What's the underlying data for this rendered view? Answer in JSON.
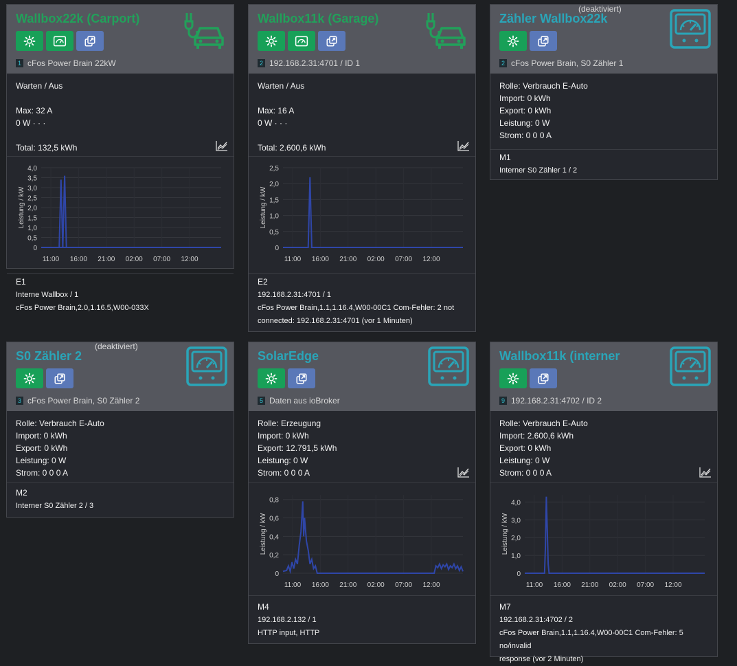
{
  "colors": {
    "green": "#18a058",
    "blue": "#5a78b8",
    "teal": "#2aa5b8",
    "line": "#2f46a8"
  },
  "cards": {
    "c1": {
      "title": "Wallbox22k (Carport)",
      "idx": "1",
      "sub": "cFos Power Brain 22kW",
      "status": "Warten / Aus",
      "max": "Max: 32 A",
      "power": "0 W · · ·",
      "total": "Total: 132,5 kWh",
      "foot_id": "E1",
      "foot1": "Interne Wallbox / 1",
      "foot2": "cFos Power Brain,2.0,1.16.5,W00-033X",
      "chart": {
        "type": "line",
        "ylabel": "Leistung / kW",
        "yticks": [
          "4,0",
          "3,5",
          "3,0",
          "2,5",
          "2,0",
          "1,5",
          "1,0",
          "0,5",
          "0"
        ],
        "xticks": [
          "11:00",
          "16:00",
          "21:00",
          "02:00",
          "07:00",
          "12:00"
        ],
        "ylim": [
          0,
          4.0
        ],
        "series": [
          {
            "points": [
              [
                0,
                0
              ],
              [
                10,
                0
              ],
              [
                11,
                3.4
              ],
              [
                12,
                0
              ],
              [
                90,
                0
              ],
              [
                100,
                0
              ]
            ]
          },
          {
            "points": [
              [
                0,
                0
              ],
              [
                12,
                0
              ],
              [
                13,
                3.6
              ],
              [
                14,
                0
              ],
              [
                100,
                0
              ]
            ]
          }
        ]
      }
    },
    "c2": {
      "title": "Wallbox11k (Garage)",
      "idx": "2",
      "sub": "192.168.2.31:4701 / ID 1",
      "status": "Warten / Aus",
      "max": "Max: 16 A",
      "power": "0 W · · ·",
      "total": "Total: 2.600,6 kWh",
      "foot_id": "E2",
      "foot1": "192.168.2.31:4701 / 1",
      "foot2": "cFos Power Brain,1.1,1.16.4,W00-00C1 Com-Fehler: 2 not",
      "foot3": "connected: 192.168.2.31:4701 (vor 1 Minuten)",
      "chart": {
        "type": "line",
        "ylabel": "Leistung / kW",
        "yticks": [
          "2,5",
          "2,0",
          "1,5",
          "1,0",
          "0,5",
          "0"
        ],
        "xticks": [
          "11:00",
          "16:00",
          "21:00",
          "02:00",
          "07:00",
          "12:00"
        ],
        "ylim": [
          0,
          2.5
        ],
        "series": [
          {
            "points": [
              [
                0,
                0
              ],
              [
                14,
                0
              ],
              [
                15,
                2.2
              ],
              [
                16,
                0
              ],
              [
                100,
                0
              ]
            ]
          }
        ]
      }
    },
    "c3": {
      "title": "Zähler Wallbox22k",
      "deact": "(deaktiviert)",
      "idx": "2",
      "sub": "cFos Power Brain, S0 Zähler 1",
      "role": "Rolle: Verbrauch E-Auto",
      "imp": "Import: 0 kWh",
      "exp": "Export: 0 kWh",
      "pow": "Leistung: 0 W",
      "cur": "Strom: 0 0 0 A",
      "foot_id": "M1",
      "foot1": "Interner S0 Zähler 1 / 2"
    },
    "c4": {
      "title": "S0 Zähler 2",
      "deact": "(deaktiviert)",
      "idx": "3",
      "sub": "cFos Power Brain, S0 Zähler 2",
      "role": "Rolle: Verbrauch E-Auto",
      "imp": "Import: 0 kWh",
      "exp": "Export: 0 kWh",
      "pow": "Leistung: 0 W",
      "cur": "Strom: 0 0 0 A",
      "foot_id": "M2",
      "foot1": "Interner S0 Zähler 2 / 3"
    },
    "c5": {
      "title": "SolarEdge",
      "idx": "5",
      "sub": "Daten aus ioBroker",
      "role": "Rolle: Erzeugung",
      "imp": "Import: 0 kWh",
      "exp": "Export: 12.791,5 kWh",
      "pow": "Leistung: 0 W",
      "cur": "Strom: 0 0 0 A",
      "foot_id": "M4",
      "foot1": "192.168.2.132 / 1",
      "foot2": "HTTP input, HTTP",
      "chart": {
        "type": "line",
        "ylabel": "Leistung / kW",
        "yticks": [
          "0,8",
          "0,6",
          "0,4",
          "0,2",
          "0"
        ],
        "xticks": [
          "11:00",
          "16:00",
          "21:00",
          "02:00",
          "07:00",
          "12:00"
        ],
        "ylim": [
          0,
          0.85
        ],
        "series": [
          {
            "points": [
              [
                0,
                0.02
              ],
              [
                2,
                0.03
              ],
              [
                3,
                0.08
              ],
              [
                4,
                0.02
              ],
              [
                5,
                0.12
              ],
              [
                6,
                0.05
              ],
              [
                7,
                0.15
              ],
              [
                8,
                0.1
              ],
              [
                9,
                0.3
              ],
              [
                10,
                0.45
              ],
              [
                11,
                0.78
              ],
              [
                11.5,
                0.4
              ],
              [
                12,
                0.6
              ],
              [
                13,
                0.35
              ],
              [
                14,
                0.25
              ],
              [
                15,
                0.1
              ],
              [
                16,
                0.15
              ],
              [
                17,
                0.05
              ],
              [
                18,
                0.08
              ],
              [
                19,
                0
              ],
              [
                84,
                0
              ],
              [
                85,
                0.08
              ],
              [
                86,
                0.06
              ],
              [
                87,
                0.1
              ],
              [
                88,
                0.05
              ],
              [
                89,
                0.09
              ],
              [
                90,
                0.07
              ],
              [
                91,
                0.1
              ],
              [
                92,
                0.04
              ],
              [
                93,
                0.08
              ],
              [
                94,
                0.06
              ],
              [
                95,
                0.1
              ],
              [
                96,
                0.05
              ],
              [
                97,
                0.08
              ],
              [
                98,
                0.03
              ],
              [
                99,
                0.07
              ],
              [
                100,
                0.02
              ]
            ]
          }
        ]
      }
    },
    "c6": {
      "title": "Wallbox11k (interner",
      "idx": "9",
      "sub": "192.168.2.31:4702 / ID 2",
      "role": "Rolle: Verbrauch E-Auto",
      "imp": "Import: 2.600,6 kWh",
      "exp": "Export: 0 kWh",
      "pow": "Leistung: 0 W",
      "cur": "Strom: 0 0 0 A",
      "foot_id": "M7",
      "foot1": "192.168.2.31:4702 / 2",
      "foot2": "cFos Power Brain,1.1,1.16.4,W00-00C1 Com-Fehler: 5 no/invalid",
      "foot3": "response (vor 2 Minuten)",
      "chart": {
        "type": "line",
        "ylabel": "Leistung / kW",
        "yticks": [
          "4,0",
          "3,0",
          "2,0",
          "1,0",
          "0"
        ],
        "xticks": [
          "11:00",
          "16:00",
          "21:00",
          "02:00",
          "07:00",
          "12:00"
        ],
        "ylim": [
          0,
          4.4
        ],
        "series": [
          {
            "points": [
              [
                0,
                0
              ],
              [
                11,
                0
              ],
              [
                11.5,
                1.5
              ],
              [
                12,
                4.3
              ],
              [
                12.5,
                2.4
              ],
              [
                13,
                0.5
              ],
              [
                13.5,
                0
              ],
              [
                100,
                0
              ]
            ]
          }
        ]
      }
    }
  }
}
